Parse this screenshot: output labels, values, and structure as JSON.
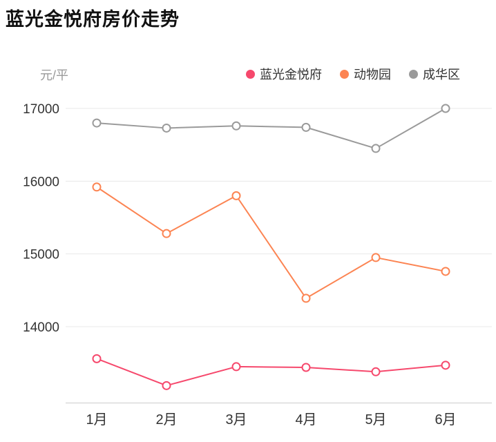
{
  "title": "蓝光金悦府房价走势",
  "chart_data": {
    "type": "line",
    "title": "蓝光金悦府房价走势",
    "xlabel": "",
    "ylabel": "元/平",
    "categories": [
      "1月",
      "2月",
      "3月",
      "4月",
      "5月",
      "6月"
    ],
    "y_ticks": [
      17000,
      16000,
      15000,
      14000
    ],
    "ylim": [
      13000,
      17200
    ],
    "grid": true,
    "legend_position": "top",
    "marker_style": "hollow-circle",
    "colors": {
      "grid_line": "#e8e8e8",
      "axis_line": "#cccccc",
      "tick_label": "#333333"
    },
    "series": [
      {
        "name": "蓝光金悦府",
        "color": "#f6486c",
        "values": [
          13560,
          13190,
          13450,
          13440,
          13380,
          13470
        ]
      },
      {
        "name": "动物园",
        "color": "#fc8452",
        "values": [
          15920,
          15280,
          15800,
          14390,
          14950,
          14760
        ]
      },
      {
        "name": "成华区",
        "color": "#9a9a9a",
        "values": [
          16800,
          16730,
          16760,
          16740,
          16450,
          17000
        ]
      }
    ]
  }
}
